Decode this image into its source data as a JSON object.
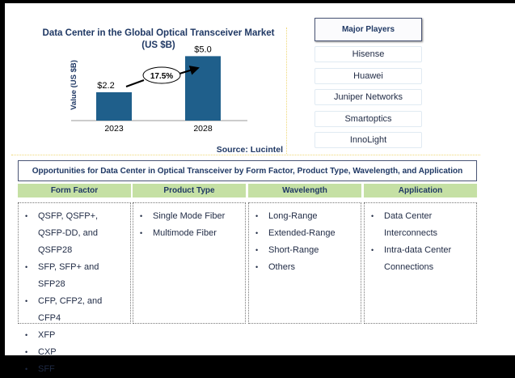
{
  "chart_data": {
    "type": "bar",
    "title": "Data Center in the Global Optical Transceiver Market",
    "subtitle": "(US $B)",
    "ylabel": "Value (US $B)",
    "xlabel": "",
    "categories": [
      "2023",
      "2028"
    ],
    "values": [
      2.2,
      5.0
    ],
    "data_labels": [
      "$2.2",
      "$5.0"
    ],
    "cagr_annotation": "17.5%",
    "ylim": [
      0,
      6.5
    ],
    "bar_color": "#1f5f8b",
    "grid": false
  },
  "source": "Source: Lucintel",
  "major_players": {
    "title": "Major Players",
    "items": [
      "Hisense",
      "Huawei",
      "Juniper Networks",
      "Smartoptics",
      "InnoLight"
    ]
  },
  "opportunities": {
    "title": "Opportunities for Data Center in Optical Transceiver by Form Factor, Product Type, Wavelength, and Application",
    "columns": [
      {
        "header": "Form Factor",
        "items": [
          "QSFP, QSFP+, QSFP-DD, and QSFP28",
          "SFP, SFP+ and SFP28",
          "CFP, CFP2, and CFP4",
          "XFP",
          "CXP",
          "SFF"
        ]
      },
      {
        "header": "Product Type",
        "items": [
          "Single Mode Fiber",
          "Multimode Fiber"
        ]
      },
      {
        "header": "Wavelength",
        "items": [
          "Long-Range",
          "Extended-Range",
          "Short-Range",
          "Others"
        ]
      },
      {
        "header": "Application",
        "items": [
          "Data Center Interconnects",
          "Intra-data Center Connections"
        ]
      }
    ]
  }
}
